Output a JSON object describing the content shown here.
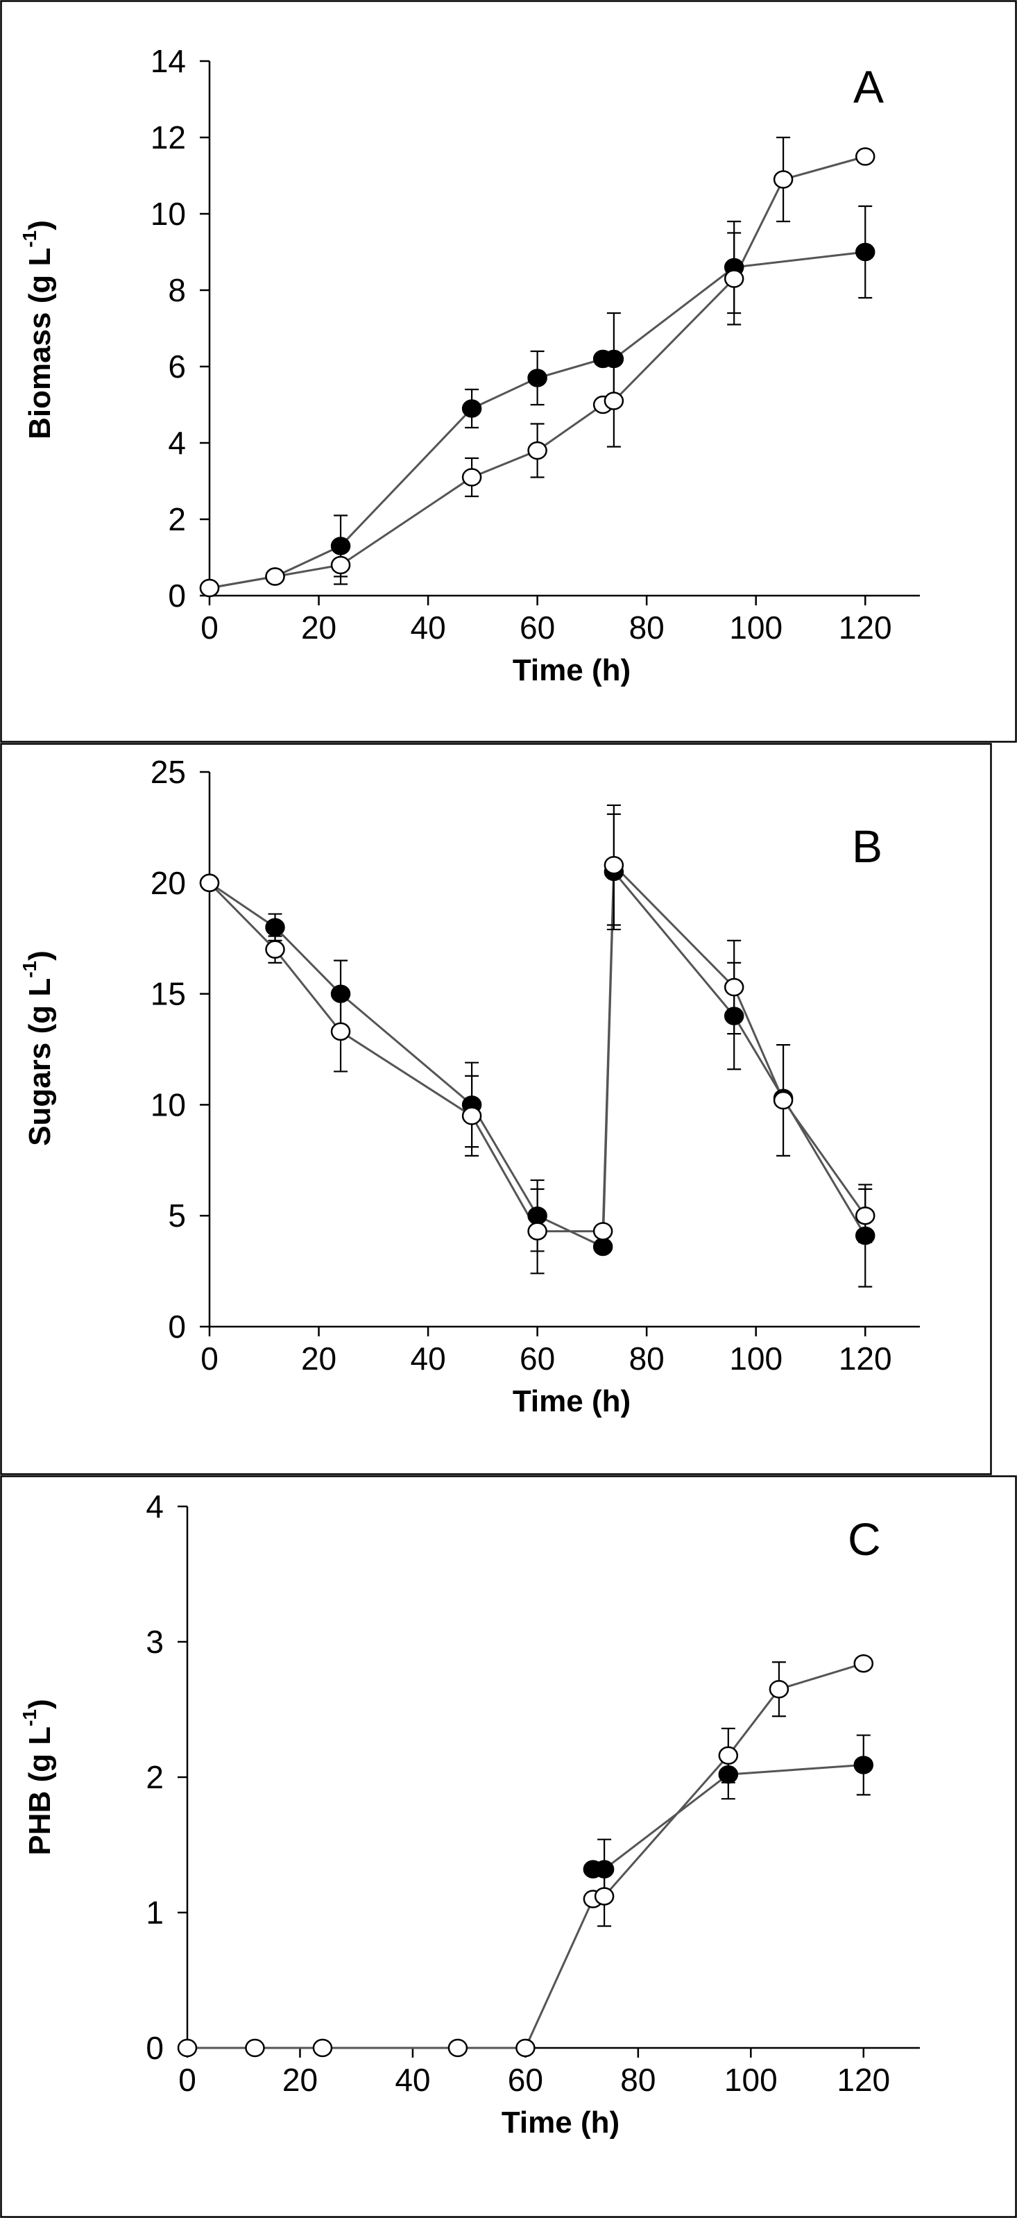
{
  "figure": {
    "colors": {
      "line": "#555555",
      "marker_edge": "#000000",
      "filled": "#000000",
      "open": "#ffffff"
    }
  },
  "chart_data": [
    {
      "id": "A",
      "type": "line",
      "panel_label": "A",
      "xlabel": "Time (h)",
      "ylabel_main": "Biomass (g L",
      "ylabel_sup": "-1",
      "ylabel_close": ")",
      "xlim": [
        0,
        130
      ],
      "ylim": [
        0,
        14
      ],
      "xticks": [
        0,
        20,
        40,
        60,
        80,
        100,
        120
      ],
      "yticks": [
        0,
        2,
        4,
        6,
        8,
        10,
        12,
        14
      ],
      "series": [
        {
          "name": "filled",
          "marker": "filled",
          "x": [
            0,
            12,
            24,
            48,
            60,
            72,
            74,
            96,
            120
          ],
          "y": [
            0.2,
            0.5,
            1.3,
            4.9,
            5.7,
            6.2,
            6.2,
            8.6,
            9.0
          ],
          "err": [
            0,
            0,
            0.8,
            0.5,
            0.7,
            0,
            1.2,
            1.2,
            1.2
          ]
        },
        {
          "name": "open",
          "marker": "open",
          "x": [
            0,
            12,
            24,
            48,
            60,
            72,
            74,
            96,
            105,
            120
          ],
          "y": [
            0.2,
            0.5,
            0.8,
            3.1,
            3.8,
            5.0,
            5.1,
            8.3,
            10.9,
            11.5
          ],
          "err": [
            0,
            0,
            0.5,
            0.5,
            0.7,
            0,
            1.2,
            1.2,
            1.1,
            0
          ]
        }
      ]
    },
    {
      "id": "B",
      "type": "line",
      "panel_label": "B",
      "xlabel": "Time (h)",
      "ylabel_main": "Sugars  (g L",
      "ylabel_sup": "-1",
      "ylabel_close": ")",
      "xlim": [
        0,
        130
      ],
      "ylim": [
        0,
        25
      ],
      "xticks": [
        0,
        20,
        40,
        60,
        80,
        100,
        120
      ],
      "yticks": [
        0,
        5,
        10,
        15,
        20,
        25
      ],
      "series": [
        {
          "name": "filled",
          "marker": "filled",
          "x": [
            0,
            12,
            24,
            48,
            60,
            72,
            74,
            96,
            105,
            120
          ],
          "y": [
            20.0,
            18.0,
            15.0,
            10.0,
            5.0,
            3.6,
            20.5,
            14.0,
            10.3,
            4.1
          ],
          "err": [
            0,
            0.6,
            1.5,
            1.9,
            1.6,
            0,
            2.6,
            2.4,
            0,
            2.3
          ]
        },
        {
          "name": "open",
          "marker": "open",
          "x": [
            0,
            12,
            24,
            48,
            60,
            72,
            74,
            96,
            105,
            120
          ],
          "y": [
            20.0,
            17.0,
            13.3,
            9.5,
            4.3,
            4.3,
            20.8,
            15.3,
            10.2,
            5.0
          ],
          "err": [
            0,
            0.6,
            1.8,
            1.8,
            1.9,
            0,
            2.7,
            2.1,
            2.5,
            1.2
          ]
        }
      ]
    },
    {
      "id": "C",
      "type": "line",
      "panel_label": "C",
      "xlabel": "Time (h)",
      "ylabel_main": "PHB (g L",
      "ylabel_sup": "-1",
      "ylabel_close": ")",
      "xlim": [
        0,
        130
      ],
      "ylim": [
        0,
        4
      ],
      "xticks": [
        0,
        20,
        40,
        60,
        80,
        100,
        120
      ],
      "yticks": [
        0,
        1,
        2,
        3,
        4
      ],
      "series": [
        {
          "name": "filled",
          "marker": "filled",
          "x": [
            72,
            74,
            96,
            120
          ],
          "y": [
            1.32,
            1.32,
            2.02,
            2.09
          ],
          "err": [
            0,
            0.22,
            0.18,
            0.22
          ]
        },
        {
          "name": "open",
          "marker": "open",
          "x": [
            0,
            12,
            24,
            48,
            60,
            72,
            74,
            96,
            105,
            120
          ],
          "y": [
            0,
            0,
            0,
            0,
            0,
            1.1,
            1.12,
            2.16,
            2.65,
            2.84
          ],
          "err": [
            0,
            0,
            0,
            0,
            0,
            0,
            0.22,
            0.2,
            0.2,
            0
          ]
        }
      ]
    }
  ]
}
